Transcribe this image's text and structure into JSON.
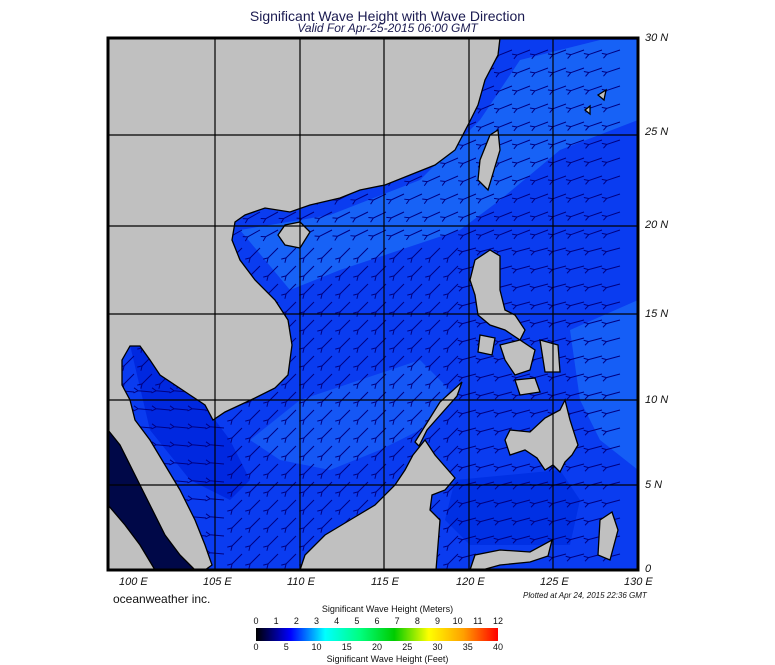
{
  "header": {
    "title": "Significant Wave Height with Wave Direction",
    "subtitle": "Valid For Apr-25-2015 06:00 GMT"
  },
  "map": {
    "lat_labels": [
      "30 N",
      "25 N",
      "20 N",
      "15 N",
      "10 N",
      "5 N",
      "0"
    ],
    "lon_labels": [
      "100 E",
      "105 E",
      "110 E",
      "115 E",
      "120 E",
      "125 E",
      "130 E"
    ],
    "colors": {
      "land": "#c0c0c0",
      "ocean": "#0a3cf0",
      "ocean_light": "#1a6cf8",
      "ocean_dark": "#0020d8",
      "andaman": "#000848",
      "arrows": "#000080"
    }
  },
  "footer": {
    "credit": "oceanweather inc.",
    "plotted": "Plotted at Apr 24, 2015 22:36 GMT"
  },
  "legend": {
    "meters_title": "Significant Wave Height (Meters)",
    "feet_title": "Significant Wave Height (Feet)",
    "meters_ticks": [
      "0",
      "1",
      "2",
      "3",
      "4",
      "5",
      "6",
      "7",
      "8",
      "9",
      "10",
      "11",
      "12"
    ],
    "feet_ticks": [
      "0",
      "5",
      "10",
      "15",
      "20",
      "25",
      "30",
      "35",
      "40"
    ],
    "gradient": [
      "#000000",
      "#0000ff",
      "#00ffff",
      "#00ff80",
      "#00cc00",
      "#ffff00",
      "#ffa000",
      "#ff0000"
    ]
  }
}
